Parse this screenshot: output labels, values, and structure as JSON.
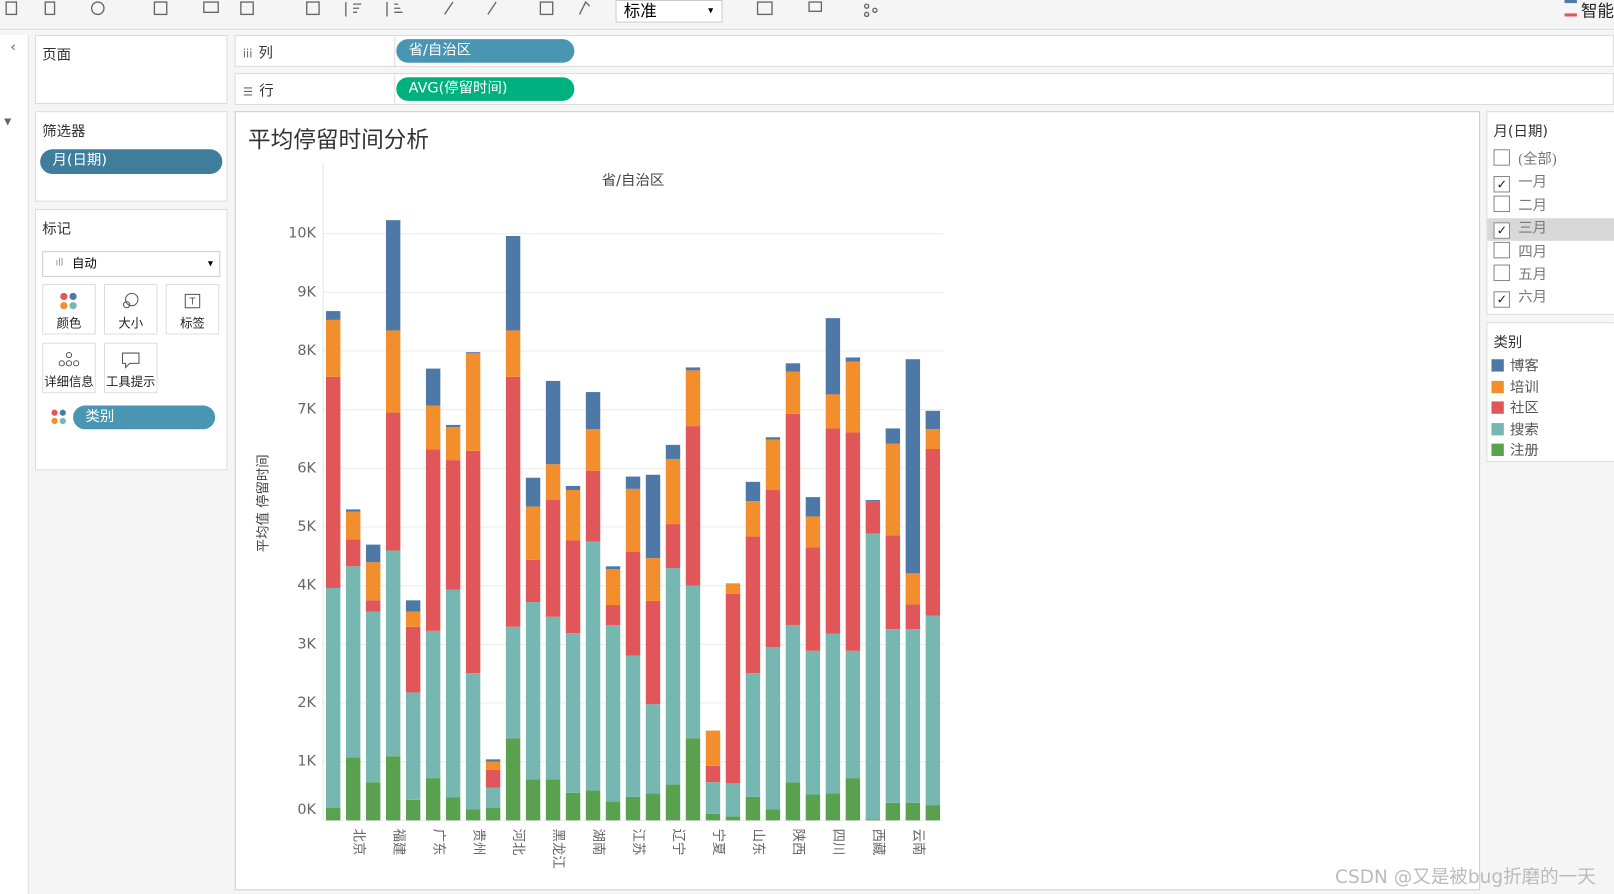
{
  "toolbar": {
    "dropdown": "标准",
    "right_button": "智能"
  },
  "pages_shelf": {
    "title": "页面"
  },
  "filters_shelf": {
    "title": "筛选器",
    "pill": "月(日期)"
  },
  "marks_card": {
    "title": "标记",
    "mark_type": "自动",
    "buttons": [
      "颜色",
      "大小",
      "标签",
      "详细信息",
      "工具提示"
    ],
    "pill": "类别"
  },
  "columns_shelf": {
    "label": "列",
    "pill": "省/自治区"
  },
  "rows_shelf": {
    "label": "行",
    "pill": "AVG(停留时间)"
  },
  "chart_data": {
    "type": "stacked-bar",
    "title": "平均停留时间分析",
    "x_header": "省/自治区",
    "y_label": "平均值 停留时间",
    "categories": [
      null,
      "北京",
      null,
      "福建",
      null,
      "广东",
      null,
      "贵州",
      null,
      "河北",
      null,
      "黑龙江",
      null,
      "湖南",
      null,
      "江苏",
      null,
      "辽宁",
      null,
      "宁夏",
      null,
      "山东",
      null,
      "陕西",
      null,
      "四川",
      null,
      "西藏",
      null,
      "云南",
      null
    ],
    "series": [
      {
        "name": "博客",
        "color": "#4e79a7",
        "values": [
          150,
          40,
          300,
          1880,
          190,
          630,
          40,
          20,
          40,
          1610,
          490,
          1420,
          70,
          630,
          50,
          210,
          1420,
          240,
          50,
          0,
          0,
          330,
          40,
          140,
          330,
          1300,
          70,
          20,
          260,
          3650,
          310
        ]
      },
      {
        "name": "培训",
        "color": "#f28e2b",
        "values": [
          970,
          470,
          650,
          1400,
          260,
          750,
          560,
          1660,
          140,
          790,
          910,
          610,
          860,
          710,
          610,
          1070,
          730,
          1110,
          950,
          600,
          180,
          600,
          860,
          720,
          530,
          580,
          1210,
          0,
          1560,
          530,
          340
        ]
      },
      {
        "name": "社区",
        "color": "#e15759",
        "values": [
          3600,
          460,
          190,
          2350,
          1120,
          3090,
          2210,
          3790,
          300,
          4260,
          720,
          1990,
          1580,
          1210,
          340,
          1770,
          1760,
          750,
          2720,
          280,
          3230,
          2330,
          2680,
          3600,
          1760,
          3500,
          3720,
          550,
          1600,
          420,
          2840
        ]
      },
      {
        "name": "搜索",
        "color": "#76b7b2",
        "values": [
          3750,
          3260,
          2910,
          3510,
          1830,
          2510,
          3540,
          2320,
          350,
          1900,
          3020,
          2770,
          2720,
          4240,
          3010,
          2410,
          1520,
          3690,
          2600,
          540,
          560,
          2110,
          2760,
          2680,
          2450,
          2720,
          2170,
          4870,
          2960,
          2960,
          3230
        ]
      },
      {
        "name": "注册",
        "color": "#59a14f",
        "values": [
          210,
          1070,
          650,
          1090,
          350,
          720,
          390,
          190,
          210,
          1400,
          700,
          700,
          470,
          510,
          320,
          400,
          460,
          610,
          1400,
          110,
          70,
          400,
          190,
          650,
          440,
          460,
          720,
          20,
          300,
          300,
          260
        ]
      }
    ],
    "ylim": [
      0,
      10500
    ],
    "yticks": [
      {
        "value": 0,
        "label": "0K"
      },
      {
        "value": 1000,
        "label": "1K"
      },
      {
        "value": 2000,
        "label": "2K"
      },
      {
        "value": 3000,
        "label": "3K"
      },
      {
        "value": 4000,
        "label": "4K"
      },
      {
        "value": 5000,
        "label": "5K"
      },
      {
        "value": 6000,
        "label": "6K"
      },
      {
        "value": 7000,
        "label": "7K"
      },
      {
        "value": 8000,
        "label": "8K"
      },
      {
        "value": 9000,
        "label": "9K"
      },
      {
        "value": 10000,
        "label": "10K"
      }
    ],
    "grid": true,
    "legend_title": "类别"
  },
  "month_filter": {
    "title": "月(日期)",
    "items": [
      {
        "label": "(全部)",
        "checked": false,
        "highlighted": false
      },
      {
        "label": "一月",
        "checked": true,
        "highlighted": false
      },
      {
        "label": "二月",
        "checked": false,
        "highlighted": false
      },
      {
        "label": "三月",
        "checked": true,
        "highlighted": true
      },
      {
        "label": "四月",
        "checked": false,
        "highlighted": false
      },
      {
        "label": "五月",
        "checked": false,
        "highlighted": false
      },
      {
        "label": "六月",
        "checked": true,
        "highlighted": false
      }
    ]
  },
  "watermark": "CSDN @又是被bug折磨的一天"
}
